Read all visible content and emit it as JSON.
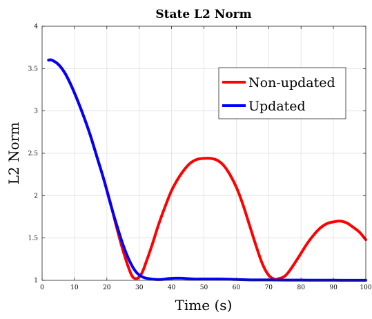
{
  "chart_data": {
    "type": "line",
    "title": "State L2 Norm",
    "xlabel": "Time (s)",
    "ylabel": "L2 Norm",
    "xlim": [
      0,
      100
    ],
    "ylim": [
      1,
      4
    ],
    "xticks": [
      0,
      10,
      20,
      30,
      40,
      50,
      60,
      70,
      80,
      90,
      100
    ],
    "yticks": [
      1,
      1.5,
      2,
      2.5,
      3,
      3.5,
      4
    ],
    "ytick_labels": [
      "1",
      "1.5",
      "2",
      "2.5",
      "3",
      "3.5",
      "4"
    ],
    "grid": true,
    "legend_position": "top-right",
    "series": [
      {
        "name": "Non-updated",
        "color": "#ff0000",
        "x": [
          2,
          3,
          5,
          7,
          9,
          11,
          13,
          15,
          17,
          19,
          21,
          23,
          25,
          27,
          28,
          29,
          30,
          31,
          32,
          34,
          36,
          38,
          40,
          42,
          44,
          46,
          48,
          50,
          52,
          54,
          56,
          58,
          60,
          62,
          64,
          66,
          68,
          70,
          72,
          73,
          74,
          75,
          76,
          78,
          80,
          82,
          84,
          86,
          88,
          90,
          92,
          94,
          96,
          98,
          100
        ],
        "y": [
          3.6,
          3.6,
          3.55,
          3.45,
          3.3,
          3.12,
          2.92,
          2.7,
          2.45,
          2.2,
          1.93,
          1.63,
          1.35,
          1.12,
          1.04,
          1.02,
          1.04,
          1.1,
          1.2,
          1.42,
          1.66,
          1.87,
          2.06,
          2.2,
          2.31,
          2.39,
          2.43,
          2.44,
          2.44,
          2.42,
          2.36,
          2.25,
          2.1,
          1.9,
          1.66,
          1.42,
          1.2,
          1.06,
          1.01,
          1.02,
          1.03,
          1.05,
          1.09,
          1.2,
          1.32,
          1.44,
          1.54,
          1.62,
          1.67,
          1.69,
          1.7,
          1.68,
          1.63,
          1.57,
          1.48
        ]
      },
      {
        "name": "Updated",
        "color": "#0000ff",
        "x": [
          2,
          3,
          5,
          7,
          9,
          11,
          13,
          15,
          17,
          19,
          21,
          23,
          25,
          27,
          29,
          31,
          33,
          35,
          37,
          39,
          41,
          43,
          45,
          47,
          50,
          55,
          60,
          65,
          70,
          75,
          80,
          85,
          90,
          95,
          100
        ],
        "y": [
          3.6,
          3.6,
          3.55,
          3.45,
          3.3,
          3.12,
          2.92,
          2.7,
          2.45,
          2.2,
          1.92,
          1.66,
          1.42,
          1.23,
          1.1,
          1.04,
          1.02,
          1.01,
          1.01,
          1.02,
          1.025,
          1.025,
          1.02,
          1.015,
          1.015,
          1.015,
          1.01,
          1.005,
          1.005,
          1.003,
          1.003,
          1.002,
          1.002,
          1.001,
          1.001
        ]
      }
    ]
  }
}
